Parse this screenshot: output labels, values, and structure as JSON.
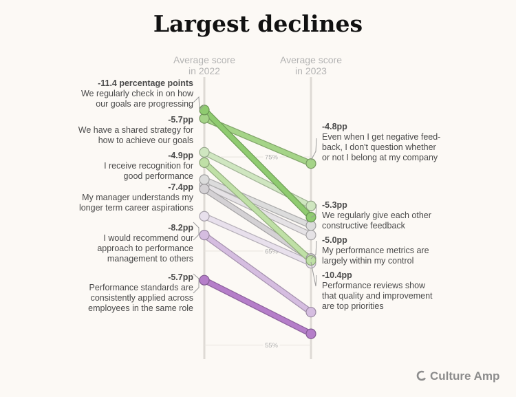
{
  "chart_data": {
    "type": "slope",
    "title": "Largest declines",
    "column_labels": [
      [
        "Average score",
        "in 2022"
      ],
      [
        "Average score",
        "in 2023"
      ]
    ],
    "gridlines": [
      {
        "value": 75,
        "label": "75%"
      },
      {
        "value": 65,
        "label": "65%"
      },
      {
        "value": 55,
        "label": "55%"
      }
    ],
    "ylim": [
      53.5,
      83.5
    ],
    "series": [
      {
        "name": "We regularly check in on how our goals are progressing",
        "change_label": "-11.4 percentage points",
        "v2022": 80.0,
        "v2023": 68.6,
        "color": "#8fcb70"
      },
      {
        "name": "Even when I get negative feedback, I don't question whether or not I belong at my company",
        "change_label": "-4.8pp",
        "v2022": 79.1,
        "v2023": 74.3,
        "color": "#a5d488"
      },
      {
        "name": "We have a shared strategy for how to achieve our goals",
        "change_label": "-5.7pp",
        "v2022": 75.5,
        "v2023": 69.8,
        "color": "#cfe6c0"
      },
      {
        "name": "I receive recognition for good performance",
        "change_label": "-4.9pp",
        "v2022": 72.6,
        "v2023": 67.7,
        "color": "#dcdcdc"
      },
      {
        "name": "Performance reviews show that quality and improvement are top priorities",
        "change_label": "-10.4pp",
        "v2022": 74.4,
        "v2023": 64.0,
        "color": "#bfe0a6"
      },
      {
        "name": "We regularly give each other constructive feedback",
        "change_label": "-5.3pp",
        "v2022": 72.0,
        "v2023": 66.7,
        "color": "#e5e2e5"
      },
      {
        "name": "My manager understands my longer term career aspirations",
        "change_label": "-7.4pp",
        "v2022": 71.6,
        "v2023": 64.2,
        "color": "#d4d1d4"
      },
      {
        "name": "My performance metrics are largely within my control",
        "change_label": "-5.0pp",
        "v2022": 68.7,
        "v2023": 63.7,
        "color": "#e8e0ec"
      },
      {
        "name": "I would recommend our approach to performance management to others",
        "change_label": "-8.2pp",
        "v2022": 66.7,
        "v2023": 58.5,
        "color": "#d5bde0"
      },
      {
        "name": "Performance standards are consistently applied across employees in the same role",
        "change_label": "-5.7pp",
        "v2022": 61.9,
        "v2023": 56.2,
        "color": "#b57ec9"
      }
    ],
    "left_annotations": [
      {
        "value": "-11.4 percentage points",
        "lines": [
          "We regularly check in on how",
          "our goals are progressing"
        ]
      },
      {
        "value": "-5.7pp",
        "lines": [
          "We have a shared strategy for",
          "how to achieve our goals"
        ]
      },
      {
        "value": "-4.9pp",
        "lines": [
          "I receive recognition for",
          "good performance"
        ]
      },
      {
        "value": "-7.4pp",
        "lines": [
          "My manager understands my",
          "longer term career aspirations"
        ]
      },
      {
        "value": "-8.2pp",
        "lines": [
          "I would recommend our",
          "approach to performance",
          "management to others"
        ]
      },
      {
        "value": "-5.7pp",
        "lines": [
          "Performance standards are",
          "consistently applied across",
          "employees in the same role"
        ]
      }
    ],
    "right_annotations": [
      {
        "value": "-4.8pp",
        "lines": [
          "Even when I get negative feed-",
          "back, I don't question whether",
          "or not I belong at my company"
        ]
      },
      {
        "value": "-5.3pp",
        "lines": [
          "We regularly give each other",
          "constructive feedback"
        ]
      },
      {
        "value": "-5.0pp",
        "lines": [
          "My performance metrics are",
          "largely within my control"
        ]
      },
      {
        "value": "-10.4pp",
        "lines": [
          "Performance reviews show",
          "that quality and improvement",
          "are top priorities"
        ]
      }
    ]
  },
  "brand": {
    "name": "Culture Amp",
    "color": "#8c8c8c"
  }
}
